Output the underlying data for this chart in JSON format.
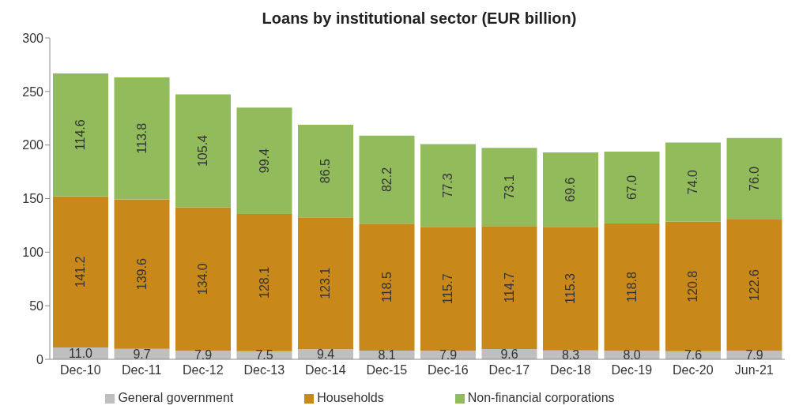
{
  "chart_data": {
    "type": "bar",
    "title": "Loans by institutional sector (EUR billion)",
    "stacked": true,
    "legend": "bottom",
    "ylim": [
      0,
      300
    ],
    "yticks": [
      0,
      50,
      100,
      150,
      200,
      250,
      300
    ],
    "categories": [
      "Dec-10",
      "Dec-11",
      "Dec-12",
      "Dec-13",
      "Dec-14",
      "Dec-15",
      "Dec-16",
      "Dec-17",
      "Dec-18",
      "Dec-19",
      "Dec-20",
      "Jun-21"
    ],
    "series": [
      {
        "name": "General government",
        "color": "#bfbfbf",
        "values": [
          11.0,
          9.7,
          7.9,
          7.5,
          9.4,
          8.1,
          7.9,
          9.6,
          8.3,
          8.0,
          7.6,
          7.9
        ],
        "value_labels": [
          "11.0",
          "9.7",
          "7.9",
          "7.5",
          "9.4",
          "8.1",
          "7.9",
          "9.6",
          "8.3",
          "8.0",
          "7.6",
          "7.9"
        ]
      },
      {
        "name": "Households",
        "color": "#c8891a",
        "values": [
          141.2,
          139.6,
          134.0,
          128.1,
          123.1,
          118.5,
          115.7,
          114.7,
          115.3,
          118.8,
          120.8,
          122.6
        ],
        "value_labels": [
          "141.2",
          "139.6",
          "134.0",
          "128.1",
          "123.1",
          "118.5",
          "115.7",
          "114.7",
          "115.3",
          "118.8",
          "120.8",
          "122.6"
        ]
      },
      {
        "name": "Non-financial corporations",
        "color": "#92bb5c",
        "values": [
          114.6,
          113.8,
          105.4,
          99.4,
          86.5,
          82.2,
          77.3,
          73.1,
          69.6,
          67.0,
          74.0,
          76.0
        ],
        "value_labels": [
          "114.6",
          "113.8",
          "105.4",
          "99.4",
          "86.5",
          "82.2",
          "77.3",
          "73.1",
          "69.6",
          "67.0",
          "74.0",
          "76.0"
        ]
      }
    ]
  }
}
